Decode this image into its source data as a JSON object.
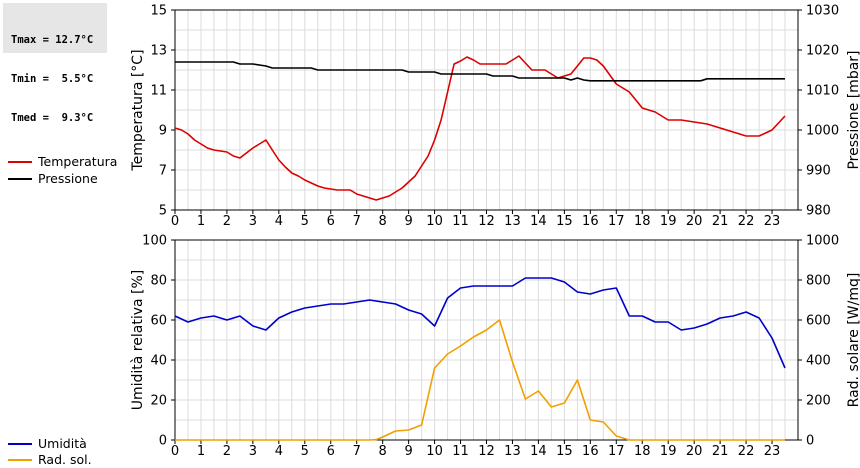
{
  "stats": {
    "tmax": "Tmax = 12.7°C",
    "tmin": "Tmin =  5.5°C",
    "tmed": "Tmed =  9.3°C"
  },
  "legend": {
    "top": [
      {
        "label": "Temperatura",
        "color": "#dd0000"
      },
      {
        "label": "Pressione",
        "color": "#000000"
      }
    ],
    "bottom": [
      {
        "label": "Umidità",
        "color": "#0000cc"
      },
      {
        "label": "Rad. sol.",
        "color": "#f0a000"
      }
    ]
  },
  "chart_data": [
    {
      "type": "line",
      "x_ticks": [
        "0",
        "1",
        "2",
        "3",
        "4",
        "5",
        "6",
        "7",
        "8",
        "9",
        "10",
        "11",
        "12",
        "13",
        "14",
        "15",
        "16",
        "17",
        "18",
        "19",
        "20",
        "21",
        "22",
        "23"
      ],
      "xlim": [
        0,
        24
      ],
      "ylabel": "Temperatura [°C]",
      "ylim": [
        5,
        15
      ],
      "y_ticks": [
        "5",
        "7",
        "9",
        "11",
        "13",
        "15"
      ],
      "y2label": "Pressione [mbar]",
      "y2lim": [
        980,
        1030
      ],
      "y2_ticks": [
        "980",
        "990",
        "1000",
        "1010",
        "1020",
        "1030"
      ],
      "grid": true,
      "series": [
        {
          "name": "Temperatura",
          "axis": "left",
          "color": "#dd0000",
          "x": [
            0,
            0.25,
            0.5,
            0.75,
            1,
            1.25,
            1.5,
            1.75,
            2,
            2.25,
            2.5,
            2.75,
            3,
            3.25,
            3.5,
            3.75,
            4,
            4.25,
            4.5,
            4.75,
            5,
            5.25,
            5.5,
            5.75,
            6,
            6.25,
            6.5,
            6.75,
            7,
            7.25,
            7.5,
            7.75,
            8,
            8.25,
            8.5,
            8.75,
            9,
            9.25,
            9.5,
            9.75,
            10,
            10.25,
            10.5,
            10.75,
            11,
            11.25,
            11.5,
            11.75,
            12,
            12.25,
            12.5,
            12.75,
            13,
            13.25,
            13.5,
            13.75,
            14,
            14.25,
            14.5,
            14.75,
            15,
            15.25,
            15.5,
            15.75,
            16,
            16.25,
            16.5,
            16.75,
            17,
            17.25,
            17.5,
            17.75,
            18,
            18.25,
            18.5,
            18.75,
            19,
            19.25,
            19.5,
            19.75,
            20,
            20.25,
            20.5,
            20.75,
            21,
            21.25,
            21.5,
            21.75,
            22,
            22.25,
            22.5,
            22.75,
            23,
            23.25,
            23.5
          ],
          "y": [
            9.1,
            9.0,
            8.8,
            8.5,
            8.3,
            8.1,
            8.0,
            7.95,
            7.9,
            7.7,
            7.6,
            7.85,
            8.1,
            8.3,
            8.5,
            8.0,
            7.5,
            7.15,
            6.85,
            6.7,
            6.5,
            6.35,
            6.2,
            6.1,
            6.05,
            6.0,
            6.0,
            6.0,
            5.8,
            5.7,
            5.6,
            5.5,
            5.6,
            5.7,
            5.9,
            6.1,
            6.4,
            6.7,
            7.2,
            7.7,
            8.5,
            9.5,
            10.9,
            12.3,
            12.45,
            12.65,
            12.5,
            12.3,
            12.3,
            12.3,
            12.3,
            12.3,
            12.5,
            12.7,
            12.35,
            12.0,
            12.0,
            12.0,
            11.8,
            11.6,
            11.7,
            11.8,
            12.2,
            12.6,
            12.6,
            12.5,
            12.2,
            11.75,
            11.3,
            11.1,
            10.9,
            10.5,
            10.1,
            10.0,
            9.9,
            9.7,
            9.5,
            9.5,
            9.5,
            9.45,
            9.4,
            9.35,
            9.3,
            9.2,
            9.1,
            9.0,
            8.9,
            8.8,
            8.7,
            8.7,
            8.7,
            8.85,
            9.0,
            9.35,
            9.7
          ]
        },
        {
          "name": "Pressione",
          "axis": "right",
          "color": "#000000",
          "x": [
            0,
            2.25,
            2.5,
            3,
            3.5,
            3.75,
            5.25,
            5.5,
            8.75,
            9,
            10,
            10.25,
            12,
            12.25,
            13,
            13.25,
            15,
            15.25,
            15.5,
            15.75,
            16,
            20.25,
            20.5,
            23.5
          ],
          "y": [
            1017,
            1017,
            1016.5,
            1016.5,
            1016,
            1015.5,
            1015.5,
            1015,
            1015,
            1014.5,
            1014.5,
            1014,
            1014,
            1013.5,
            1013.5,
            1013,
            1013,
            1012.5,
            1013,
            1012.5,
            1012.3,
            1012.3,
            1012.8,
            1012.8
          ]
        }
      ]
    },
    {
      "type": "line",
      "x_ticks": [
        "0",
        "1",
        "2",
        "3",
        "4",
        "5",
        "6",
        "7",
        "8",
        "9",
        "10",
        "11",
        "12",
        "13",
        "14",
        "15",
        "16",
        "17",
        "18",
        "19",
        "20",
        "21",
        "22",
        "23"
      ],
      "xlim": [
        0,
        24
      ],
      "ylabel": "Umidità relativa [%]",
      "ylim": [
        0,
        100
      ],
      "y_ticks": [
        "0",
        "20",
        "40",
        "60",
        "80",
        "100"
      ],
      "y2label": "Rad. solare [W/mq]",
      "y2lim": [
        0,
        1000
      ],
      "y2_ticks": [
        "0",
        "200",
        "400",
        "600",
        "800",
        "1000"
      ],
      "grid": true,
      "series": [
        {
          "name": "Umidità",
          "axis": "left",
          "color": "#0000cc",
          "x": [
            0,
            0.5,
            1,
            1.5,
            2,
            2.5,
            3,
            3.5,
            4,
            4.5,
            5,
            5.5,
            6,
            6.5,
            7,
            7.5,
            8,
            8.5,
            9,
            9.5,
            10,
            10.5,
            11,
            11.5,
            12,
            12.5,
            13,
            13.5,
            14,
            14.5,
            15,
            15.5,
            16,
            16.5,
            17,
            17.5,
            18,
            18.5,
            19,
            19.5,
            20,
            20.5,
            21,
            21.5,
            22,
            22.5,
            23,
            23.5
          ],
          "y": [
            62,
            59,
            61,
            62,
            60,
            62,
            57,
            55,
            61,
            64,
            66,
            67,
            68,
            68,
            69,
            70,
            69,
            68,
            65,
            63,
            57,
            71,
            76,
            77,
            77,
            77,
            77,
            81,
            81,
            81,
            79,
            74,
            73,
            75,
            76,
            62,
            62,
            59,
            59,
            55,
            56,
            58,
            61,
            62,
            64,
            61,
            51,
            36
          ]
        },
        {
          "name": "Rad. sol.",
          "axis": "right",
          "color": "#f0a000",
          "x": [
            0,
            7.5,
            7.75,
            8,
            8.5,
            9,
            9.5,
            10,
            10.5,
            11,
            11.5,
            12,
            12.5,
            13,
            13.5,
            14,
            14.5,
            15,
            15.5,
            16,
            16.5,
            17,
            17.5,
            23.5
          ],
          "y": [
            0,
            0,
            2,
            15,
            45,
            50,
            75,
            360,
            430,
            470,
            515,
            550,
            600,
            390,
            205,
            245,
            165,
            185,
            300,
            100,
            90,
            20,
            0,
            0
          ]
        }
      ]
    }
  ]
}
